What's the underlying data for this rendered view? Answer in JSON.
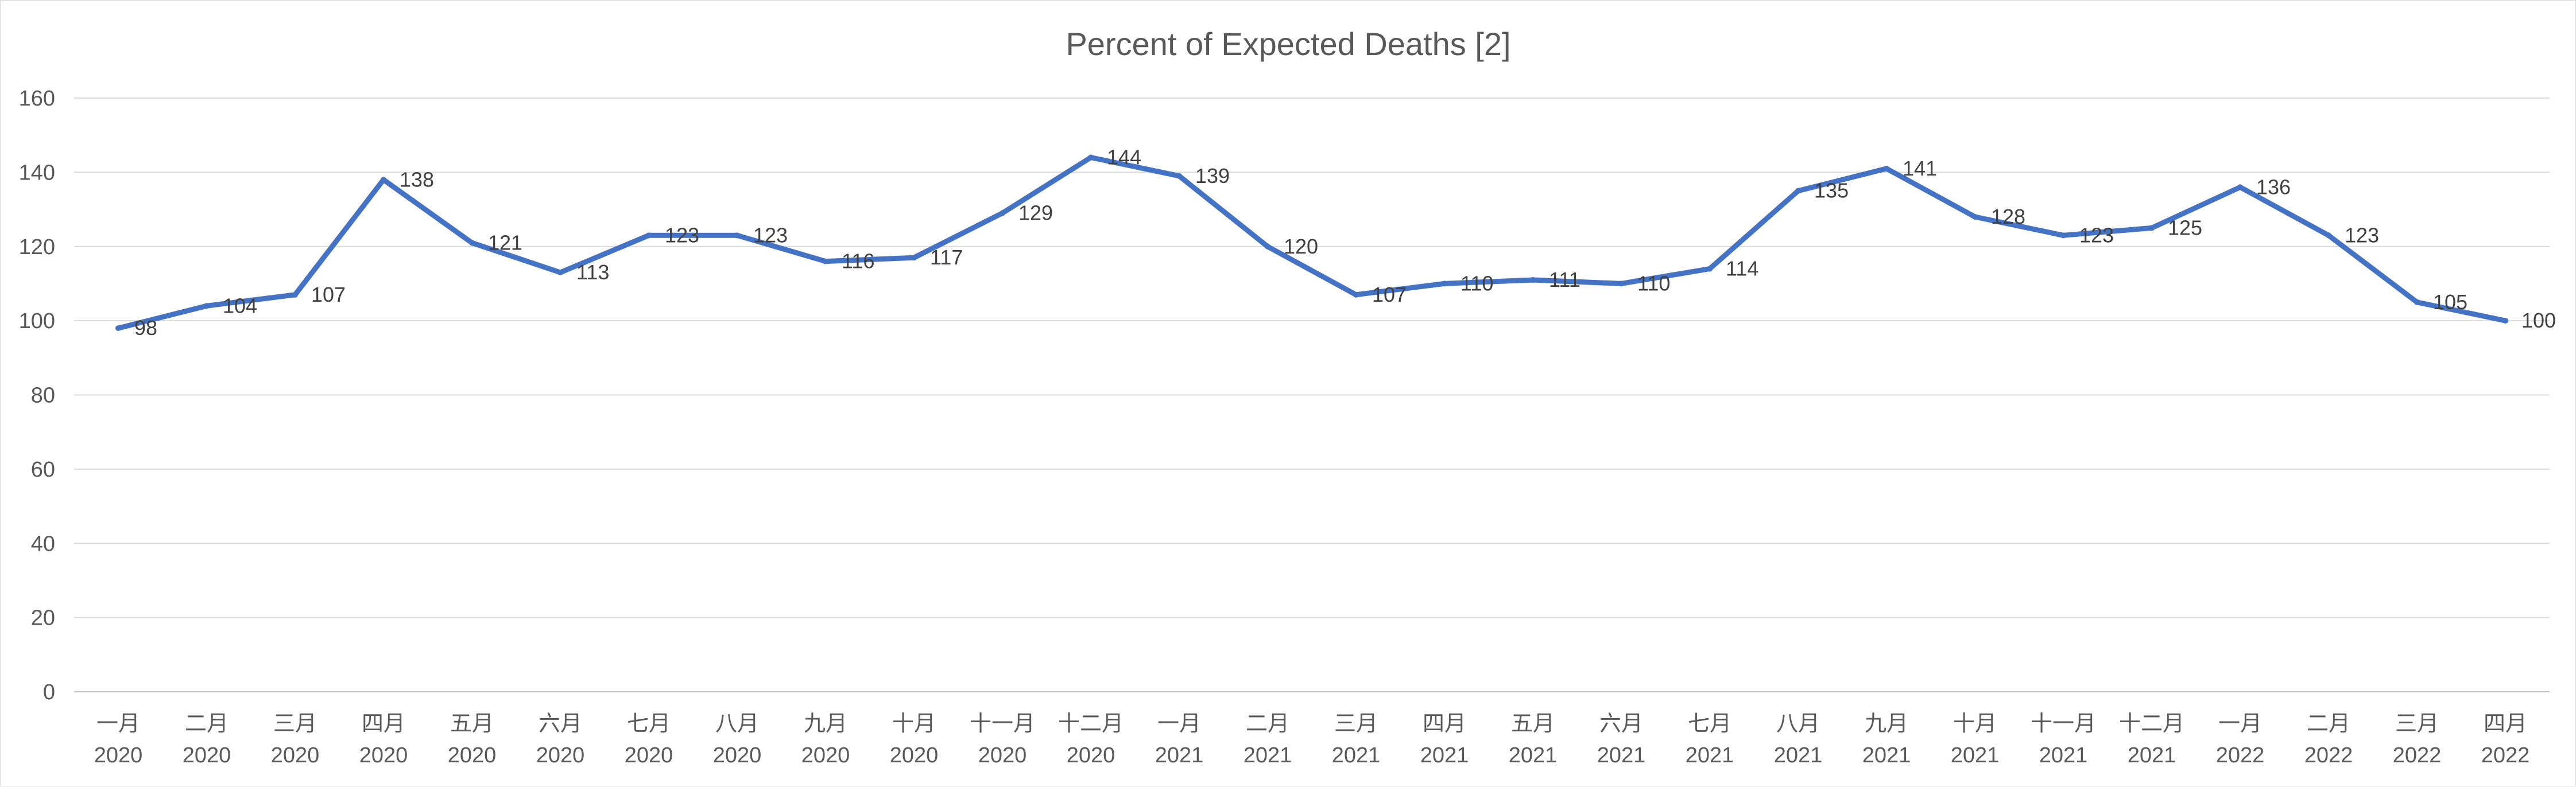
{
  "chart_data": {
    "type": "line",
    "title": "Percent of Expected Deaths [2]",
    "xlabel": "",
    "ylabel": "",
    "ylim": [
      0,
      160
    ],
    "yticks": [
      0,
      20,
      40,
      60,
      80,
      100,
      120,
      140,
      160
    ],
    "grid": true,
    "legend": "none",
    "categories": [
      {
        "month": "一月",
        "year": "2020"
      },
      {
        "month": "二月",
        "year": "2020"
      },
      {
        "month": "三月",
        "year": "2020"
      },
      {
        "month": "四月",
        "year": "2020"
      },
      {
        "month": "五月",
        "year": "2020"
      },
      {
        "month": "六月",
        "year": "2020"
      },
      {
        "month": "七月",
        "year": "2020"
      },
      {
        "month": "八月",
        "year": "2020"
      },
      {
        "month": "九月",
        "year": "2020"
      },
      {
        "month": "十月",
        "year": "2020"
      },
      {
        "month": "十一月",
        "year": "2020"
      },
      {
        "month": "十二月",
        "year": "2020"
      },
      {
        "month": "一月",
        "year": "2021"
      },
      {
        "month": "二月",
        "year": "2021"
      },
      {
        "month": "三月",
        "year": "2021"
      },
      {
        "month": "四月",
        "year": "2021"
      },
      {
        "month": "五月",
        "year": "2021"
      },
      {
        "month": "六月",
        "year": "2021"
      },
      {
        "month": "七月",
        "year": "2021"
      },
      {
        "month": "八月",
        "year": "2021"
      },
      {
        "month": "九月",
        "year": "2021"
      },
      {
        "month": "十月",
        "year": "2021"
      },
      {
        "month": "十一月",
        "year": "2021"
      },
      {
        "month": "十二月",
        "year": "2021"
      },
      {
        "month": "一月",
        "year": "2022"
      },
      {
        "month": "二月",
        "year": "2022"
      },
      {
        "month": "三月",
        "year": "2022"
      },
      {
        "month": "四月",
        "year": "2022"
      }
    ],
    "series": [
      {
        "values": [
          98,
          104,
          107,
          138,
          121,
          113,
          123,
          123,
          116,
          117,
          129,
          144,
          139,
          120,
          107,
          110,
          111,
          110,
          114,
          135,
          141,
          128,
          123,
          125,
          136,
          123,
          105,
          100
        ],
        "data_labels": [
          "98",
          "104",
          "107",
          "138",
          "121",
          "113",
          "123",
          "123",
          "116",
          "117",
          "129",
          "144",
          "139",
          "120",
          "107",
          "110",
          "111",
          "110",
          "114",
          "135",
          "141",
          "128",
          "123",
          "125",
          "136",
          "123",
          "105",
          "100"
        ]
      }
    ],
    "colors": {
      "line": "#4472c4",
      "grid": "#d9d9d9",
      "text": "#595959",
      "label": "#404040"
    }
  }
}
